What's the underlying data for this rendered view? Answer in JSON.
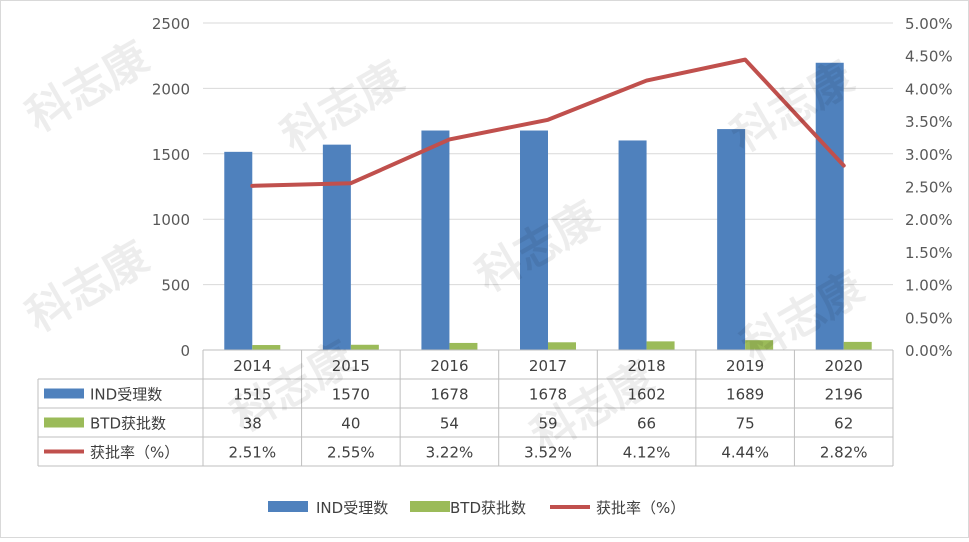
{
  "chart_data": {
    "type": "bar",
    "categories": [
      "2014",
      "2015",
      "2016",
      "2017",
      "2018",
      "2019",
      "2020"
    ],
    "series": [
      {
        "name": "IND受理数",
        "type": "bar",
        "axis": "left",
        "color": "#4F81BD",
        "values": [
          1515,
          1570,
          1678,
          1678,
          1602,
          1689,
          2196
        ],
        "table_values": [
          "1515",
          "1570",
          "1678",
          "1678",
          "1602",
          "1689",
          "2196"
        ]
      },
      {
        "name": "BTD获批数",
        "type": "bar",
        "axis": "left",
        "color": "#9BBB59",
        "values": [
          38,
          40,
          54,
          59,
          66,
          75,
          62
        ],
        "table_values": [
          "38",
          "40",
          "54",
          "59",
          "66",
          "75",
          "62"
        ]
      },
      {
        "name": "获批率（%）",
        "type": "line",
        "axis": "right",
        "color": "#C0504D",
        "values": [
          2.51,
          2.55,
          3.22,
          3.52,
          4.12,
          4.44,
          2.82
        ],
        "table_values": [
          "2.51%",
          "2.55%",
          "3.22%",
          "3.52%",
          "4.12%",
          "4.44%",
          "2.82%"
        ]
      }
    ],
    "left_axis": {
      "min": 0,
      "max": 2500,
      "step": 500,
      "ticks": [
        "0",
        "500",
        "1000",
        "1500",
        "2000",
        "2500"
      ]
    },
    "right_axis": {
      "min": 0,
      "max": 5,
      "step": 0.5,
      "ticks": [
        "0.00%",
        "0.50%",
        "1.00%",
        "1.50%",
        "2.00%",
        "2.50%",
        "3.00%",
        "3.50%",
        "4.00%",
        "4.50%",
        "5.00%"
      ]
    },
    "gridlines": true,
    "legend": "bottom",
    "data_table": true,
    "watermark": "科志康"
  }
}
